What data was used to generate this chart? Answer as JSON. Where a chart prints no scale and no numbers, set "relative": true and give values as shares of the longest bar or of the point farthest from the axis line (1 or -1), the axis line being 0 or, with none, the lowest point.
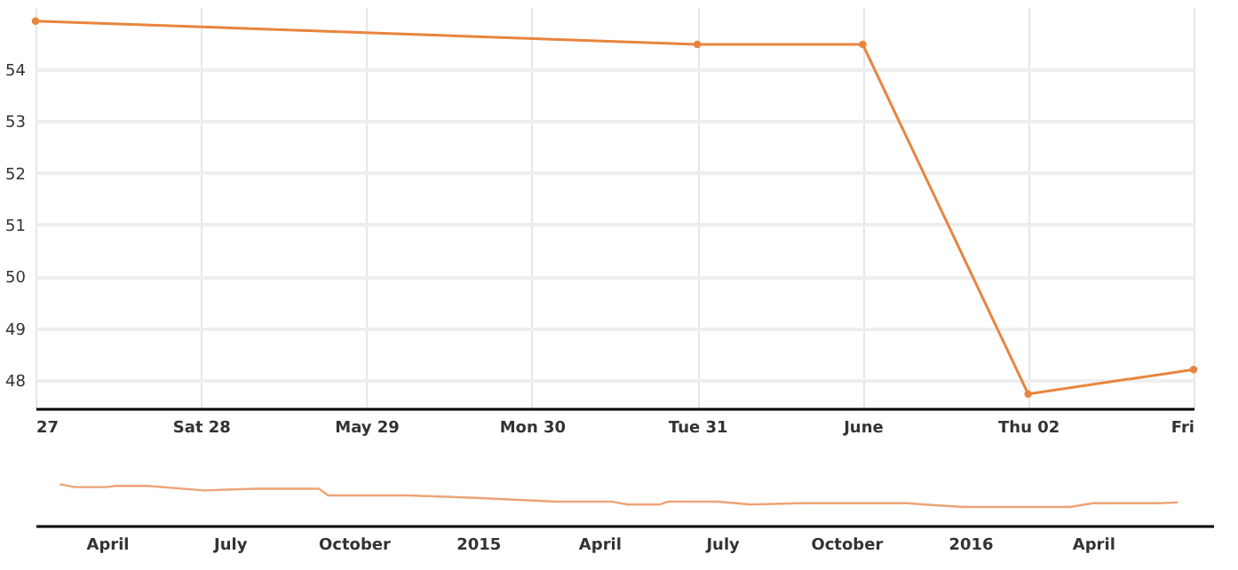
{
  "chart_data": [
    {
      "type": "line",
      "x": [
        "2016-05-27",
        "2016-05-31",
        "2016-06-01",
        "2016-06-02",
        "2016-06-03"
      ],
      "values": [
        54.93,
        54.48,
        54.48,
        47.73,
        48.2
      ],
      "color": "#e8853d",
      "marker": "circle",
      "grid": true,
      "xlim": [
        "2016-05-27",
        "2016-06-03"
      ],
      "ylim": [
        47.45,
        55.2
      ],
      "yticks": [
        48,
        49,
        50,
        51,
        52,
        53,
        54
      ],
      "xticks": [
        {
          "value": "2016-05-27",
          "label": "27"
        },
        {
          "value": "2016-05-28",
          "label": "Sat 28"
        },
        {
          "value": "2016-05-29",
          "label": "May 29"
        },
        {
          "value": "2016-05-30",
          "label": "Mon 30"
        },
        {
          "value": "2016-05-31",
          "label": "Tue 31"
        },
        {
          "value": "2016-06-01",
          "label": "June"
        },
        {
          "value": "2016-06-02",
          "label": "Thu 02"
        },
        {
          "value": "2016-06-03",
          "label": "Fri"
        }
      ]
    },
    {
      "type": "line",
      "relative": true,
      "color": "#eca477",
      "x": [
        "2014-02-25",
        "2014-03-08",
        "2014-04-01",
        "2014-04-07",
        "2014-05-01",
        "2014-06-12",
        "2014-07-20",
        "2014-09-05",
        "2014-09-12",
        "2014-11-10",
        "2014-12-30",
        "2015-02-28",
        "2015-04-10",
        "2015-04-22",
        "2015-05-16",
        "2015-05-22",
        "2015-06-28",
        "2015-07-22",
        "2015-08-28",
        "2015-11-15",
        "2015-11-28",
        "2015-12-27",
        "2016-03-15",
        "2016-04-01",
        "2016-05-20",
        "2016-06-03"
      ],
      "values": [
        1.0,
        0.93,
        0.93,
        0.96,
        0.96,
        0.85,
        0.89,
        0.89,
        0.73,
        0.73,
        0.67,
        0.58,
        0.58,
        0.51,
        0.51,
        0.58,
        0.58,
        0.51,
        0.54,
        0.54,
        0.51,
        0.45,
        0.45,
        0.54,
        0.54,
        0.56
      ],
      "xlim": [
        "2014-02-07",
        "2016-06-29"
      ],
      "xticks": [
        {
          "value": "2014-04-01",
          "label": "April"
        },
        {
          "value": "2014-07-01",
          "label": "July"
        },
        {
          "value": "2014-10-01",
          "label": "October"
        },
        {
          "value": "2015-01-01",
          "label": "2015"
        },
        {
          "value": "2015-04-01",
          "label": "April"
        },
        {
          "value": "2015-07-01",
          "label": "July"
        },
        {
          "value": "2015-10-01",
          "label": "October"
        },
        {
          "value": "2016-01-01",
          "label": "2016"
        },
        {
          "value": "2016-04-01",
          "label": "April"
        }
      ]
    }
  ]
}
